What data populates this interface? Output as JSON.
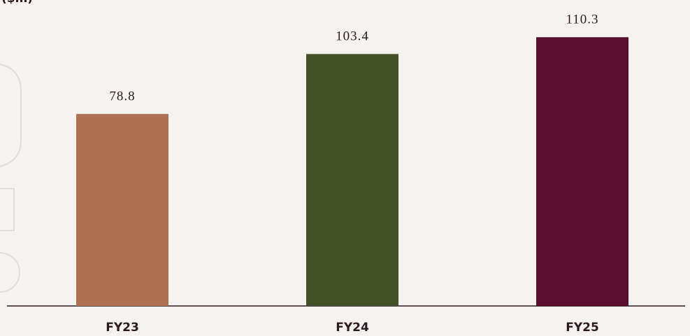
{
  "chart_data": {
    "type": "bar",
    "subtitle": "($m)",
    "categories": [
      "FY23",
      "FY24",
      "FY25"
    ],
    "values": [
      78.8,
      103.4,
      110.3
    ],
    "colors": [
      "#ad7152",
      "#435128",
      "#5a0e2f"
    ],
    "ylim": [
      0,
      125
    ]
  }
}
